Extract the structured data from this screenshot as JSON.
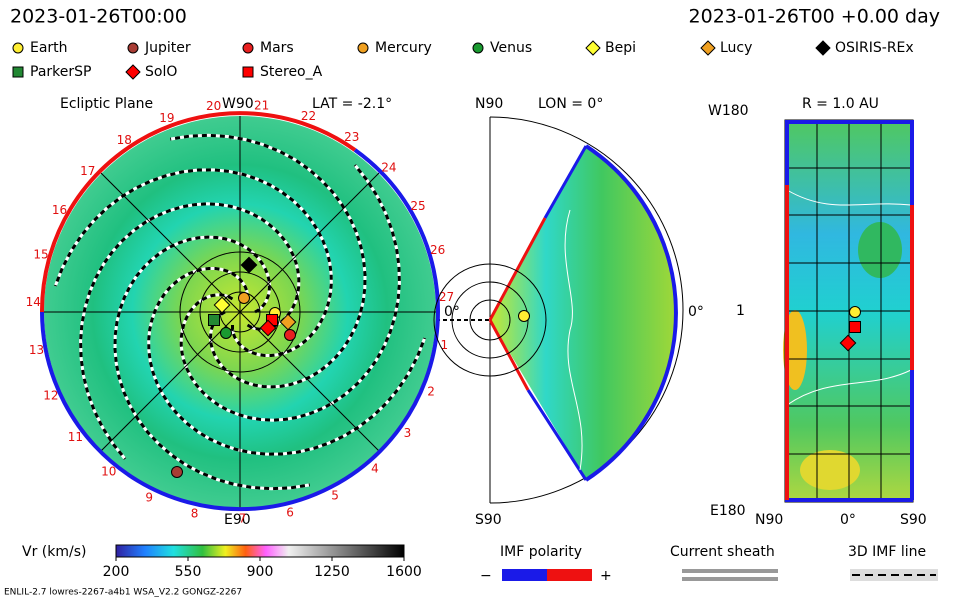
{
  "header": {
    "left": "2023-01-26T00:00",
    "right": "2023-01-26T00 +0.00 day"
  },
  "legend": [
    {
      "name": "Earth",
      "color": "#ffee33",
      "shape": "circle"
    },
    {
      "name": "Jupiter",
      "color": "#a83c34",
      "shape": "circle"
    },
    {
      "name": "Mars",
      "color": "#e82020",
      "shape": "circle"
    },
    {
      "name": "Mercury",
      "color": "#f0a020",
      "shape": "circle"
    },
    {
      "name": "Venus",
      "color": "#1a9a30",
      "shape": "circle"
    },
    {
      "name": "Bepi",
      "color": "#ffff33",
      "shape": "diamond"
    },
    {
      "name": "Lucy",
      "color": "#f0a020",
      "shape": "diamond"
    },
    {
      "name": "OSIRIS-REx",
      "color": "#000000",
      "shape": "diamond"
    },
    {
      "name": "ParkerSP",
      "color": "#228833",
      "shape": "square"
    },
    {
      "name": "SolO",
      "color": "#ff0000",
      "shape": "diamond"
    },
    {
      "name": "Stereo_A",
      "color": "#ff0000",
      "shape": "square"
    }
  ],
  "ecliptic": {
    "title": "Ecliptic Plane",
    "lat": "LAT = -2.1°",
    "top": "W90",
    "bottom": "E90",
    "zero": "0°",
    "hours": [
      "1",
      "2",
      "3",
      "4",
      "5",
      "6",
      "7",
      "8",
      "9",
      "10",
      "11",
      "12",
      "13",
      "14",
      "15",
      "16",
      "17",
      "18",
      "19",
      "20",
      "21",
      "22",
      "23",
      "24",
      "25",
      "26",
      "27"
    ]
  },
  "meridional": {
    "top": "N90",
    "lon": "LON = 0°",
    "bottom": "S90",
    "zero": "0°"
  },
  "radial": {
    "title": "R = 1.0 AU",
    "top": "W180",
    "bottom": "E180",
    "mid": "1",
    "left": "N90",
    "center": "0°",
    "right": "S90"
  },
  "colorbar": {
    "label": "Vr (km/s)",
    "lim": [
      200,
      1600
    ],
    "ticks": [
      200,
      550,
      900,
      1250,
      1600
    ]
  },
  "keys": {
    "imf": "IMF polarity",
    "minus": "−",
    "plus": "+",
    "sheath": "Current sheath",
    "line": "3D IMF line"
  },
  "footer": "ENLIL-2.7 lowres-2267-a4b1 WSA_V2.2 GONGZ-2267"
}
